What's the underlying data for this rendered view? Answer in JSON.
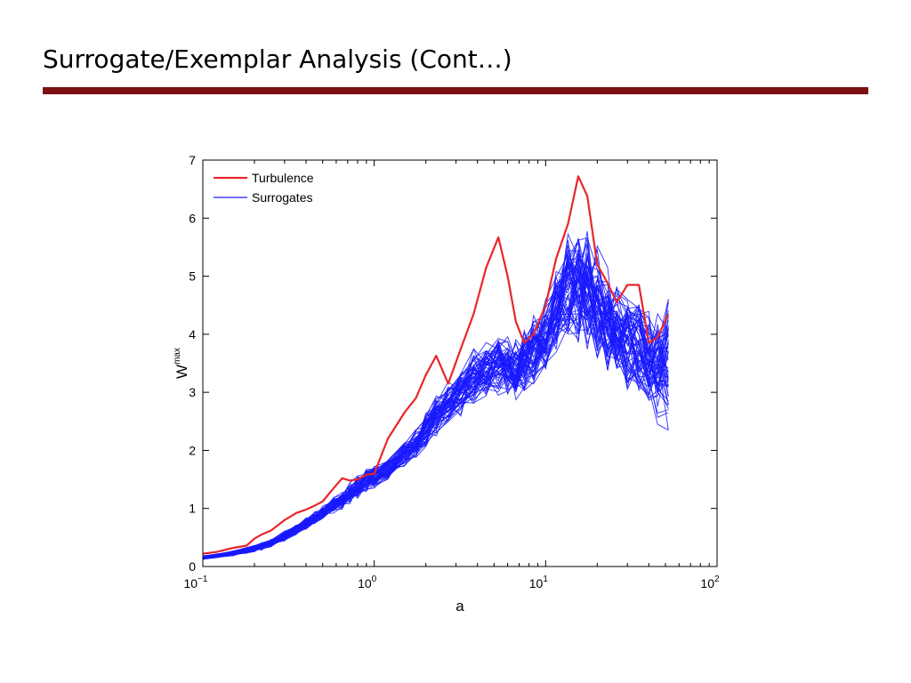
{
  "slide": {
    "title": "Surrogate/Exemplar Analysis (Cont…)",
    "rule_color": "#7b1113"
  },
  "chart_data": {
    "type": "line",
    "x_scale": "log",
    "xlim": [
      0.1,
      100
    ],
    "ylim": [
      0,
      7
    ],
    "xlabel": "a",
    "ylabel": "W",
    "ylabel_superscript": "max",
    "x_ticks": [
      {
        "value": 0.1,
        "base": "10",
        "exp": "−1"
      },
      {
        "value": 1,
        "base": "10",
        "exp": "0"
      },
      {
        "value": 10,
        "base": "10",
        "exp": "1"
      },
      {
        "value": 100,
        "base": "10",
        "exp": "2"
      }
    ],
    "y_ticks": [
      0,
      1,
      2,
      3,
      4,
      5,
      6,
      7
    ],
    "legend": [
      {
        "name": "Turbulence",
        "color": "#e8262b"
      },
      {
        "name": "Surrogates",
        "color": "#1a1aff"
      }
    ],
    "legend_position": "top-left",
    "grid": false,
    "turbulence": {
      "name": "Turbulence",
      "color": "#e8262b",
      "x": [
        0.1,
        0.12,
        0.15,
        0.18,
        0.2,
        0.22,
        0.25,
        0.3,
        0.35,
        0.4,
        0.45,
        0.5,
        0.58,
        0.65,
        0.72,
        0.8,
        0.9,
        1.0,
        1.2,
        1.5,
        1.75,
        2.0,
        2.3,
        2.7,
        3.2,
        3.8,
        4.5,
        5.3,
        6.0,
        6.7,
        7.5,
        8.5,
        10.0,
        11.5,
        13.5,
        15.5,
        17.5,
        20.0,
        23.0,
        26.0,
        30.0,
        35.0,
        40.0,
        45.0,
        52.0
      ],
      "y": [
        0.22,
        0.25,
        0.32,
        0.36,
        0.48,
        0.55,
        0.62,
        0.8,
        0.92,
        0.98,
        1.05,
        1.12,
        1.35,
        1.52,
        1.48,
        1.5,
        1.58,
        1.6,
        2.2,
        2.65,
        2.9,
        3.3,
        3.63,
        3.15,
        3.75,
        4.35,
        5.15,
        5.67,
        5.0,
        4.22,
        3.85,
        4.0,
        4.5,
        5.3,
        5.9,
        6.72,
        6.38,
        5.2,
        4.88,
        4.55,
        4.85,
        4.85,
        3.85,
        3.95,
        4.35
      ]
    },
    "surrogates": {
      "name": "Surrogates",
      "color": "#1a1aff",
      "count": 60,
      "x": [
        0.1,
        0.12,
        0.15,
        0.18,
        0.2,
        0.22,
        0.25,
        0.3,
        0.35,
        0.4,
        0.45,
        0.5,
        0.58,
        0.65,
        0.72,
        0.8,
        0.9,
        1.0,
        1.2,
        1.5,
        1.75,
        2.0,
        2.3,
        2.7,
        3.2,
        3.8,
        4.5,
        5.3,
        6.0,
        6.7,
        7.5,
        8.5,
        10.0,
        11.5,
        13.5,
        15.5,
        17.5,
        20.0,
        23.0,
        26.0,
        30.0,
        35.0,
        40.0,
        45.0,
        52.0
      ],
      "mean": [
        0.15,
        0.18,
        0.22,
        0.27,
        0.3,
        0.34,
        0.4,
        0.52,
        0.64,
        0.74,
        0.84,
        0.92,
        1.03,
        1.1,
        1.2,
        1.3,
        1.4,
        1.5,
        1.65,
        1.88,
        2.07,
        2.25,
        2.45,
        2.65,
        2.9,
        3.15,
        3.33,
        3.42,
        3.35,
        3.38,
        3.5,
        3.65,
        3.9,
        4.25,
        4.5,
        4.55,
        4.4,
        4.2,
        4.05,
        3.95,
        3.9,
        3.75,
        3.6,
        3.4,
        3.45
      ],
      "spread_low": [
        0.12,
        0.15,
        0.18,
        0.22,
        0.25,
        0.28,
        0.33,
        0.44,
        0.55,
        0.64,
        0.74,
        0.81,
        0.92,
        0.98,
        1.07,
        1.17,
        1.26,
        1.35,
        1.5,
        1.72,
        1.88,
        2.02,
        2.18,
        2.35,
        2.55,
        2.75,
        2.9,
        2.95,
        2.9,
        2.85,
        2.95,
        3.05,
        3.3,
        3.6,
        3.8,
        3.75,
        3.6,
        3.45,
        3.35,
        3.2,
        3.05,
        2.9,
        2.65,
        2.45,
        2.35
      ],
      "spread_high": [
        0.19,
        0.22,
        0.27,
        0.33,
        0.37,
        0.41,
        0.48,
        0.61,
        0.74,
        0.86,
        0.96,
        1.05,
        1.2,
        1.3,
        1.45,
        1.58,
        1.72,
        1.75,
        1.85,
        2.15,
        2.4,
        2.65,
        2.95,
        3.2,
        3.45,
        3.75,
        3.9,
        4.0,
        4.05,
        3.95,
        4.1,
        4.35,
        4.7,
        5.2,
        5.75,
        5.9,
        6.1,
        5.55,
        5.15,
        4.9,
        4.75,
        4.65,
        4.55,
        4.35,
        4.72
      ]
    }
  }
}
